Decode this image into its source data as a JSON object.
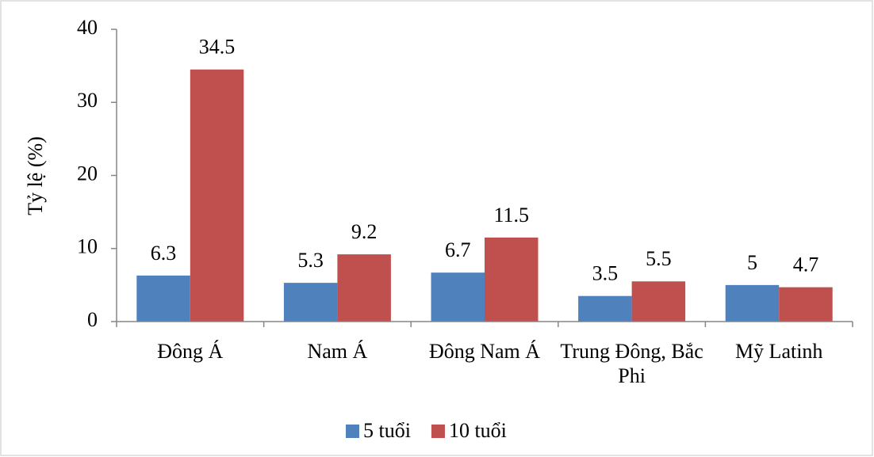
{
  "chart_data": {
    "type": "bar",
    "y_label": "Tỷ lệ (%)",
    "categories": [
      "Đông Á",
      "Nam Á",
      "Đông Nam Á",
      "Trung Đông, Bắc Phi",
      "Mỹ Latinh"
    ],
    "series": [
      {
        "name": "5 tuổi",
        "color": "#4f81bd",
        "values": [
          6.3,
          5.3,
          6.7,
          3.5,
          5
        ]
      },
      {
        "name": "10 tuổi",
        "color": "#c0504d",
        "values": [
          34.5,
          9.2,
          11.5,
          5.5,
          4.7
        ]
      }
    ],
    "ylim": [
      0,
      40
    ],
    "yticks": [
      0,
      10,
      20,
      30,
      40
    ],
    "grid": false,
    "legend": "bottom"
  }
}
